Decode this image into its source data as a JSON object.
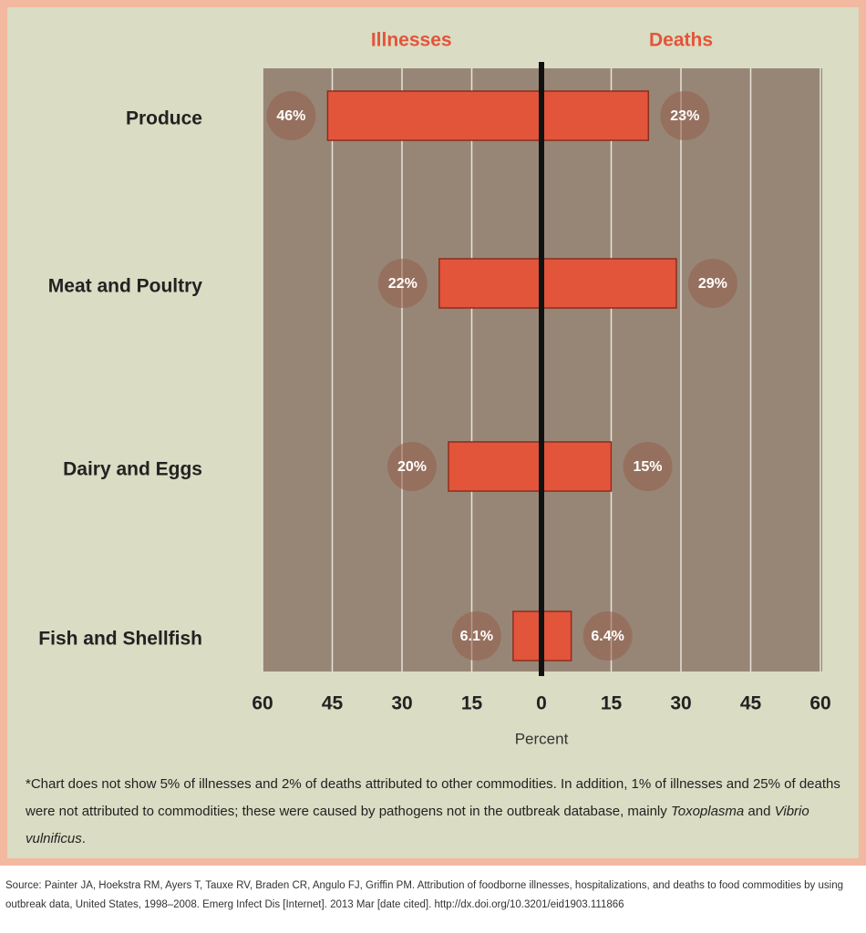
{
  "chart_data": {
    "type": "butterfly",
    "categories": [
      "Produce",
      "Meat and Poultry",
      "Dairy and Eggs",
      "Fish and Shellfish"
    ],
    "series": [
      {
        "name": "Illnesses",
        "color": "#e2553a",
        "values": [
          46,
          22,
          20,
          6.1
        ],
        "value_labels": [
          "46%",
          "22%",
          "20%",
          "6.1%"
        ]
      },
      {
        "name": "Deaths",
        "color": "#e2553a",
        "values": [
          23,
          29,
          15,
          6.4
        ],
        "value_labels": [
          "23%",
          "29%",
          "15%",
          "6.4%"
        ]
      }
    ],
    "xlim": [
      -60,
      60
    ],
    "xticks": [
      {
        "value": -60,
        "label": "60"
      },
      {
        "value": -45,
        "label": "45"
      },
      {
        "value": -30,
        "label": "30"
      },
      {
        "value": -15,
        "label": "15"
      },
      0,
      15,
      30,
      45,
      60
    ],
    "xlabel": "Percent",
    "grid": true,
    "footnote": [
      "*Chart does not show 5% of illnesses and 2% of deaths attributed to other commodities. In addition, 1% of illnesses and 25% of deaths were not attributed to commodities; these were caused by pathogens not in the outbreak database, mainly ",
      "Toxoplasma",
      " and ",
      "Vibrio vulnificus",
      "."
    ],
    "source": "Source: Painter JA, Hoekstra RM, Ayers T, Tauxe RV, Braden CR, Angulo FJ, Griffin PM. Attribution of foodborne illnesses, hospitalizations, and deaths to food commodities by using outbreak data, United States, 1998–2008. Emerg Infect Dis [Internet]. 2013 Mar [date cited]. http://dx.doi.org/10.3201/eid1903.111866"
  }
}
